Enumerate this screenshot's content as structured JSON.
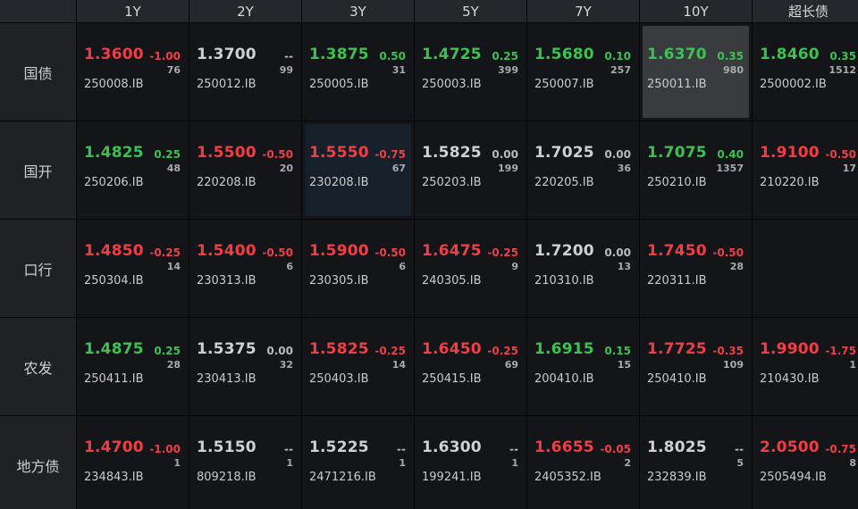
{
  "columns": [
    "1Y",
    "2Y",
    "3Y",
    "5Y",
    "7Y",
    "10Y",
    "超长债"
  ],
  "rows": [
    {
      "label": "国债",
      "cells": [
        {
          "price": "1.3600",
          "change": "-1.00",
          "volume": "76",
          "code": "250008.IB",
          "dir": "up"
        },
        {
          "price": "1.3700",
          "change": "--",
          "volume": "99",
          "code": "250012.IB",
          "dir": "flat"
        },
        {
          "price": "1.3875",
          "change": "0.50",
          "volume": "31",
          "code": "250005.IB",
          "dir": "down"
        },
        {
          "price": "1.4725",
          "change": "0.25",
          "volume": "399",
          "code": "250003.IB",
          "dir": "down"
        },
        {
          "price": "1.5680",
          "change": "0.10",
          "volume": "257",
          "code": "250007.IB",
          "dir": "down"
        },
        {
          "price": "1.6370",
          "change": "0.35",
          "volume": "980",
          "code": "250011.IB",
          "dir": "down",
          "highlight": "gray"
        },
        {
          "price": "1.8460",
          "change": "0.35",
          "volume": "1512",
          "code": "2500002.IB",
          "dir": "down"
        }
      ]
    },
    {
      "label": "国开",
      "cells": [
        {
          "price": "1.4825",
          "change": "0.25",
          "volume": "48",
          "code": "250206.IB",
          "dir": "down"
        },
        {
          "price": "1.5500",
          "change": "-0.50",
          "volume": "20",
          "code": "220208.IB",
          "dir": "up"
        },
        {
          "price": "1.5550",
          "change": "-0.75",
          "volume": "67",
          "code": "230208.IB",
          "dir": "up",
          "highlight": "blue"
        },
        {
          "price": "1.5825",
          "change": "0.00",
          "volume": "199",
          "code": "250203.IB",
          "dir": "flat"
        },
        {
          "price": "1.7025",
          "change": "0.00",
          "volume": "36",
          "code": "220205.IB",
          "dir": "flat"
        },
        {
          "price": "1.7075",
          "change": "0.40",
          "volume": "1357",
          "code": "250210.IB",
          "dir": "down"
        },
        {
          "price": "1.9100",
          "change": "-0.50",
          "volume": "17",
          "code": "210220.IB",
          "dir": "up"
        }
      ]
    },
    {
      "label": "口行",
      "cells": [
        {
          "price": "1.4850",
          "change": "-0.25",
          "volume": "14",
          "code": "250304.IB",
          "dir": "up"
        },
        {
          "price": "1.5400",
          "change": "-0.50",
          "volume": "6",
          "code": "230313.IB",
          "dir": "up"
        },
        {
          "price": "1.5900",
          "change": "-0.50",
          "volume": "6",
          "code": "230305.IB",
          "dir": "up"
        },
        {
          "price": "1.6475",
          "change": "-0.25",
          "volume": "9",
          "code": "240305.IB",
          "dir": "up"
        },
        {
          "price": "1.7200",
          "change": "0.00",
          "volume": "13",
          "code": "210310.IB",
          "dir": "flat"
        },
        {
          "price": "1.7450",
          "change": "-0.50",
          "volume": "28",
          "code": "220311.IB",
          "dir": "up"
        },
        null
      ]
    },
    {
      "label": "农发",
      "cells": [
        {
          "price": "1.4875",
          "change": "0.25",
          "volume": "28",
          "code": "250411.IB",
          "dir": "down"
        },
        {
          "price": "1.5375",
          "change": "0.00",
          "volume": "32",
          "code": "230413.IB",
          "dir": "flat"
        },
        {
          "price": "1.5825",
          "change": "-0.25",
          "volume": "14",
          "code": "250403.IB",
          "dir": "up"
        },
        {
          "price": "1.6450",
          "change": "-0.25",
          "volume": "69",
          "code": "250415.IB",
          "dir": "up"
        },
        {
          "price": "1.6915",
          "change": "0.15",
          "volume": "15",
          "code": "200410.IB",
          "dir": "down"
        },
        {
          "price": "1.7725",
          "change": "-0.35",
          "volume": "109",
          "code": "250410.IB",
          "dir": "up"
        },
        {
          "price": "1.9900",
          "change": "-1.75",
          "volume": "1",
          "code": "210430.IB",
          "dir": "up"
        }
      ]
    },
    {
      "label": "地方债",
      "cells": [
        {
          "price": "1.4700",
          "change": "-1.00",
          "volume": "1",
          "code": "234843.IB",
          "dir": "up"
        },
        {
          "price": "1.5150",
          "change": "--",
          "volume": "1",
          "code": "809218.IB",
          "dir": "flat"
        },
        {
          "price": "1.5225",
          "change": "--",
          "volume": "1",
          "code": "2471216.IB",
          "dir": "flat"
        },
        {
          "price": "1.6300",
          "change": "--",
          "volume": "1",
          "code": "199241.IB",
          "dir": "flat"
        },
        {
          "price": "1.6655",
          "change": "-0.05",
          "volume": "2",
          "code": "2405352.IB",
          "dir": "up"
        },
        {
          "price": "1.8025",
          "change": "--",
          "volume": "5",
          "code": "232839.IB",
          "dir": "flat"
        },
        {
          "price": "2.0500",
          "change": "-0.75",
          "volume": "8",
          "code": "2505494.IB",
          "dir": "up"
        }
      ]
    }
  ],
  "colors": {
    "up": "#ef3f46",
    "down": "#3ec153",
    "flat": "#cfd0d2"
  }
}
